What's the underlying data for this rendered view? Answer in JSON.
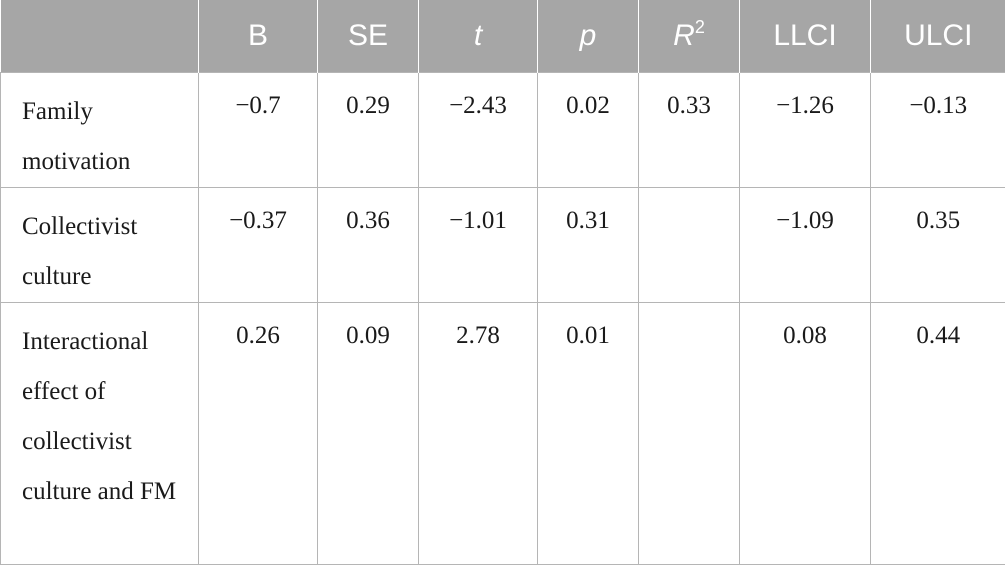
{
  "table": {
    "headers": {
      "empty": "",
      "b": "B",
      "se": "SE",
      "t": "t",
      "p": "p",
      "r_base": "R",
      "r_sup": "2",
      "llci": "LLCI",
      "ulci": "ULCI"
    },
    "rows": [
      {
        "label": "Family motivation",
        "b": "−0.7",
        "se": "0.29",
        "t": "−2.43",
        "p": "0.02",
        "r2": "0.33",
        "llci": "−1.26",
        "ulci": "−0.13"
      },
      {
        "label": "Collectivist culture",
        "b": "−0.37",
        "se": "0.36",
        "t": "−1.01",
        "p": "0.31",
        "r2": "",
        "llci": "−1.09",
        "ulci": "0.35"
      },
      {
        "label": "Interactional effect of collectivist culture and FM",
        "b": "0.26",
        "se": "0.09",
        "t": "2.78",
        "p": "0.01",
        "r2": "",
        "llci": "0.08",
        "ulci": "0.44"
      }
    ]
  }
}
